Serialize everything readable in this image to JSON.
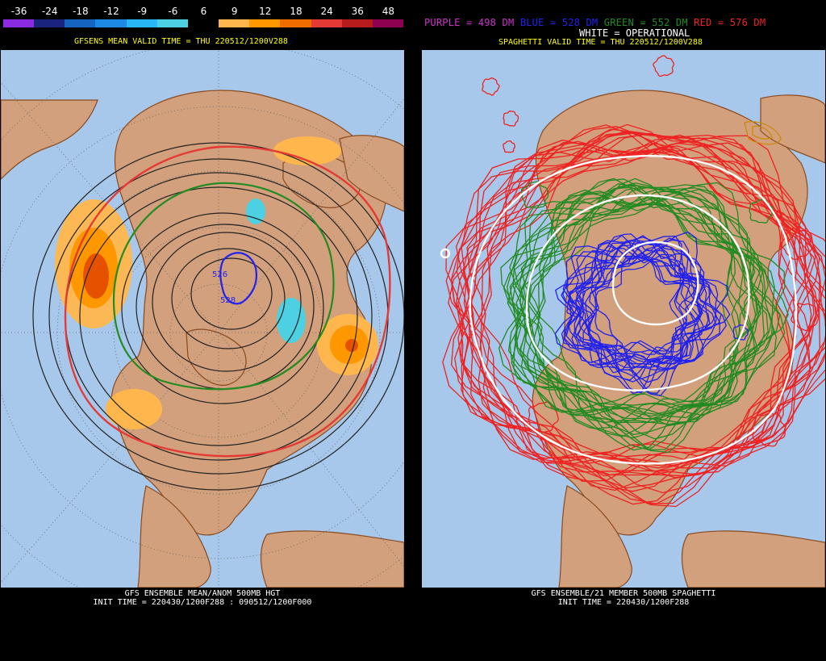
{
  "left": {
    "legend": {
      "labels": [
        "-36",
        "-24",
        "-18",
        "-12",
        "-9",
        "-6",
        "6",
        "9",
        "12",
        "18",
        "24",
        "36",
        "48"
      ],
      "colors": [
        "#8a2be2",
        "#1a237e",
        "#1565c0",
        "#1e88e5",
        "#29b6f6",
        "#4dd0e1",
        "#000000",
        "#ffb74d",
        "#ff9800",
        "#ef6c00",
        "#e53935",
        "#b71c1c",
        "#8e0050"
      ]
    },
    "valid_time": "GFSENS MEAN VALID TIME = THU 220512/1200V288",
    "contour_labels": [
      "526",
      "528",
      "528"
    ],
    "caption_line1": "GFS ENSEMBLE MEAN/ANOM 500MB HGT",
    "caption_line2": "INIT TIME = 220430/1200F288 : 090512/1200F000"
  },
  "right": {
    "legend": {
      "purple": {
        "text": "PURPLE = 498 DM",
        "color": "#cc33cc"
      },
      "blue": {
        "text": "BLUE = 528 DM",
        "color": "#2222ee"
      },
      "green": {
        "text": "GREEN = 552 DM",
        "color": "#228b22"
      },
      "red": {
        "text": "RED = 576 DM",
        "color": "#ee2222"
      },
      "white": {
        "text": "WHITE = OPERATIONAL",
        "color": "#ffffff"
      }
    },
    "valid_time": "SPAGHETTI VALID TIME = THU 220512/1200V288",
    "caption_line1": "GFS ENSEMBLE/21 MEMBER 500MB SPAGHETTI",
    "caption_line2": "INIT TIME = 220430/1200F288"
  }
}
